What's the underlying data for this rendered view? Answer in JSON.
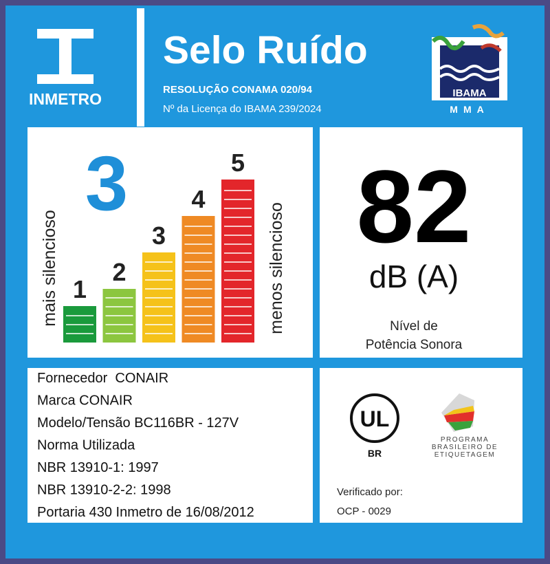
{
  "header": {
    "logo_text": "INMETRO",
    "title": "Selo Ruído",
    "resolution": "RESOLUÇÃO CONAMA 020/94",
    "license": "Nº da Licença do IBAMA 239/2024",
    "ibama_logo": "IBAMA",
    "ibama_sub": "MMA"
  },
  "rating": {
    "value": 3,
    "label_left": "mais silencioso",
    "label_right": "menos silencioso",
    "levels": [
      1,
      2,
      3,
      4,
      5
    ]
  },
  "sound": {
    "value": 82,
    "unit": "dB (A)",
    "caption_lines": [
      "Nível de",
      "Potência Sonora"
    ]
  },
  "product": {
    "lines": [
      "Fornecedor  CONAIR",
      "Marca CONAIR",
      "Modelo/Tensão BC116BR - 127V",
      "Norma Utilizada",
      "NBR 13910-1: 1997",
      "NBR 13910-2-2: 1998",
      "Portaria 430 Inmetro de 16/08/2012"
    ]
  },
  "certification": {
    "ul_text": "UL",
    "ul_sub": "BR",
    "program_lines": [
      "PROGRAMA",
      "BRASILEIRO DE",
      "ETIQUETAGEM"
    ],
    "verified_label": "Verificado por:",
    "verifier": "OCP - 0029"
  }
}
